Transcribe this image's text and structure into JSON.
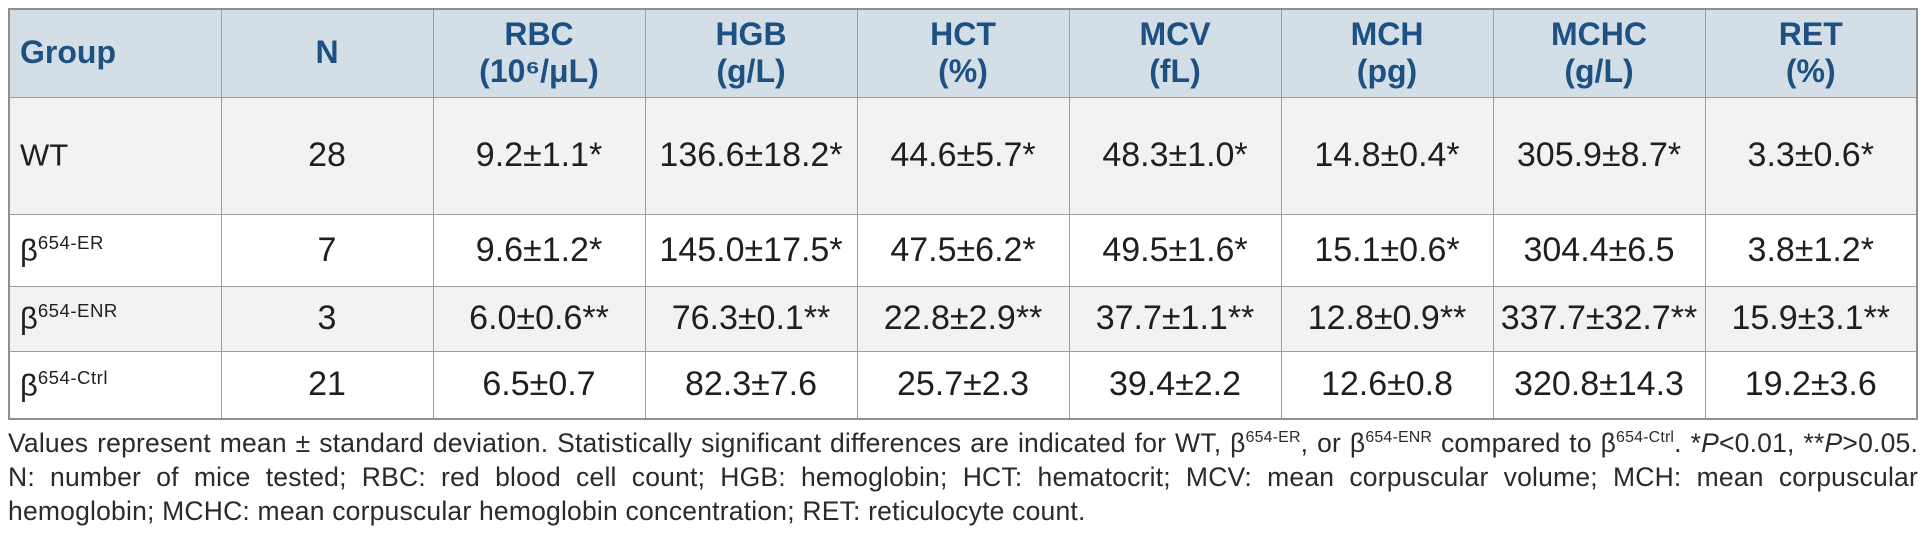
{
  "colors": {
    "header_bg": "#d3dee6",
    "header_text": "#1d5183",
    "border": "#9e9e9e",
    "row_alt_bg": "#f2f2f2",
    "row_bg": "#ffffff",
    "cell_text": "#1f1f1f",
    "footnote_text": "#2a2a2a"
  },
  "table": {
    "headers": [
      {
        "name": "Group",
        "unit": ""
      },
      {
        "name": "N",
        "unit": ""
      },
      {
        "name": "RBC",
        "unit": "(10⁶/μL)"
      },
      {
        "name": "HGB",
        "unit": "(g/L)"
      },
      {
        "name": "HCT",
        "unit": "(%)"
      },
      {
        "name": "MCV",
        "unit": "(fL)"
      },
      {
        "name": "MCH",
        "unit": "(pg)"
      },
      {
        "name": "MCHC",
        "unit": "(g/L)"
      },
      {
        "name": "RET",
        "unit": "(%)"
      }
    ],
    "rows": [
      {
        "group_base": "WT",
        "group_sup": "",
        "cells": [
          "28",
          "9.2±1.1*",
          "136.6±18.2*",
          "44.6±5.7*",
          "48.3±1.0*",
          "14.8±0.4*",
          "305.9±8.7*",
          "3.3±0.6*"
        ]
      },
      {
        "group_base": "β",
        "group_sup": "654-ER",
        "cells": [
          "7",
          "9.6±1.2*",
          "145.0±17.5*",
          "47.5±6.2*",
          "49.5±1.6*",
          "15.1±0.6*",
          "304.4±6.5",
          "3.8±1.2*"
        ]
      },
      {
        "group_base": "β",
        "group_sup": "654-ENR",
        "cells": [
          "3",
          "6.0±0.6**",
          "76.3±0.1**",
          "22.8±2.9**",
          "37.7±1.1**",
          "12.8±0.9**",
          "337.7±32.7**",
          "15.9±3.1**"
        ]
      },
      {
        "group_base": "β",
        "group_sup": "654-Ctrl",
        "cells": [
          "21",
          "6.5±0.7",
          "82.3±7.6",
          "25.7±2.3",
          "39.4±2.2",
          "12.6±0.8",
          "320.8±14.3",
          "19.2±3.6"
        ]
      }
    ]
  },
  "footnote": {
    "part1": "Values represent mean ± standard deviation. Statistically significant differences are indicated for WT, β",
    "sup1": "654-ER",
    "part2": ", or β",
    "sup2": "654-ENR",
    "part3": " compared to β",
    "sup3": "654-Ctrl",
    "part4": ". *",
    "italic1": "P",
    "part5": "<0.01, **",
    "italic2": "P",
    "part6": ">0.05. N: number of mice tested; RBC: red blood cell count; HGB: hemoglobin; HCT: hematocrit; MCV: mean corpuscular volume; MCH: mean corpuscular hemoglobin; MCHC: mean corpuscular hemoglobin concentration; RET: reticulocyte count."
  }
}
